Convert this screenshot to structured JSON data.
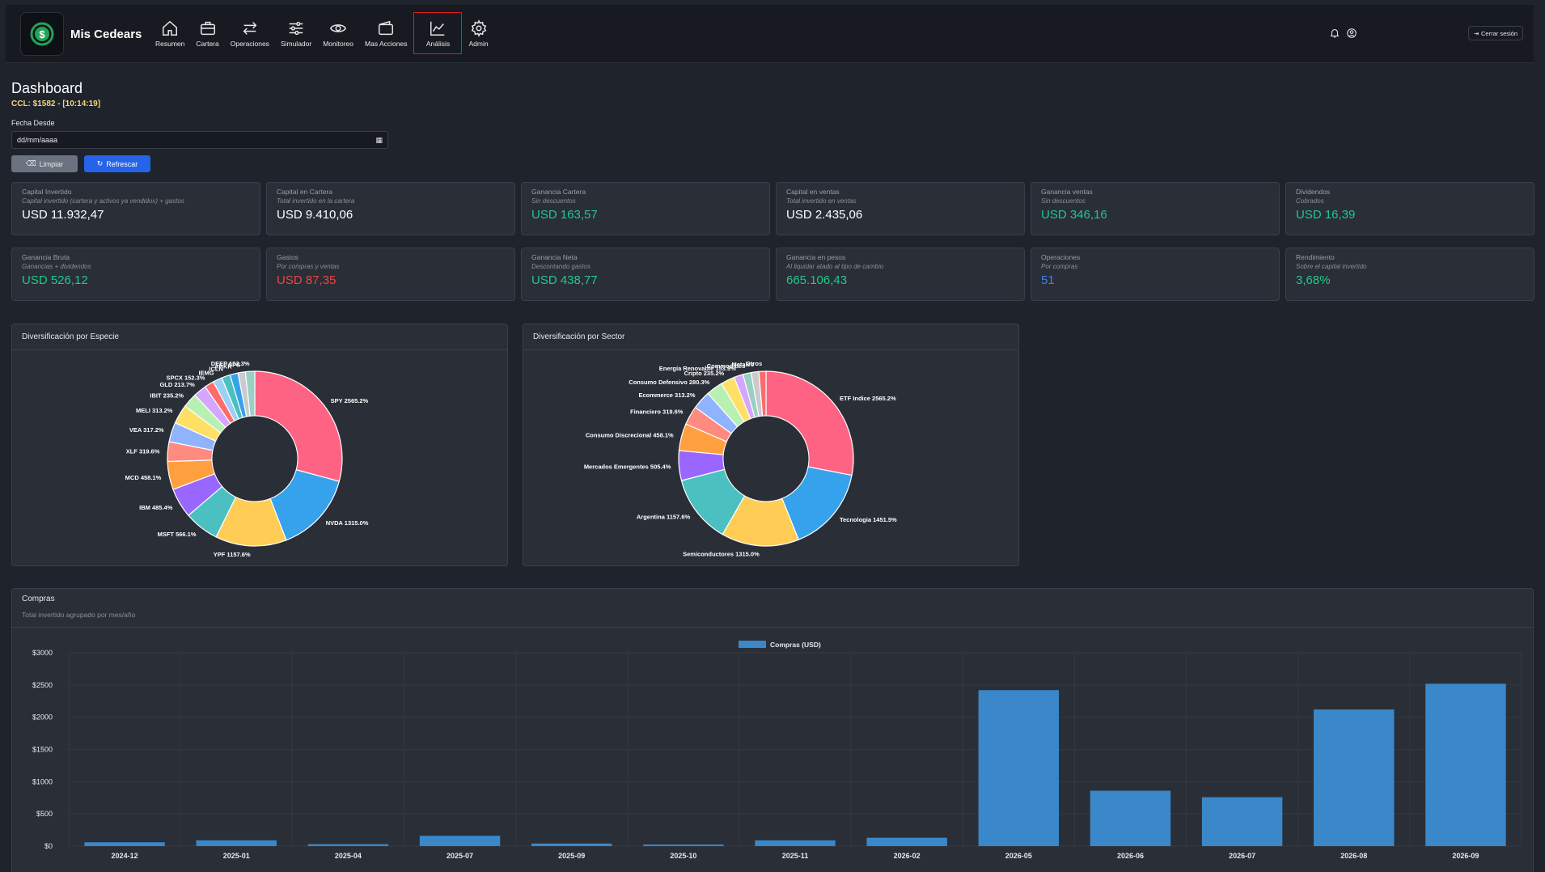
{
  "nav": {
    "brand": "Mis Cedears",
    "items": [
      {
        "label": "Resumen",
        "icon": "home-icon"
      },
      {
        "label": "Cartera",
        "icon": "briefcase-icon"
      },
      {
        "label": "Operaciones",
        "icon": "arrows-icon"
      },
      {
        "label": "Simulador",
        "icon": "sliders-icon"
      },
      {
        "label": "Monitoreo",
        "icon": "eye-icon"
      },
      {
        "label": "Mas Acciones",
        "icon": "wallet-icon"
      },
      {
        "label": "Análisis",
        "icon": "chart-line-icon",
        "active": true
      },
      {
        "label": "Admin",
        "icon": "gear-icon"
      }
    ],
    "logout": "Cerrar sesión"
  },
  "header": {
    "title": "Dashboard",
    "ccl": "CCL: $1582 - [10:14:19]",
    "date_label": "Fecha Desde",
    "date_placeholder": "dd/mm/aaaa",
    "clear_label": "Limpiar",
    "refresh_label": "Refrescar"
  },
  "cards": [
    {
      "title": "Capital Invertido",
      "sub": "Capital invertido (cartera y activos ya vendidos) + gastos",
      "value": "USD 11.932,47",
      "tone": "white"
    },
    {
      "title": "Capital en Cartera",
      "sub": "Total invertido en la cartera",
      "value": "USD 9.410,06",
      "tone": "white"
    },
    {
      "title": "Ganancia Cartera",
      "sub": "Sin descuentos",
      "value": "USD 163,57",
      "tone": "green"
    },
    {
      "title": "Capital en ventas",
      "sub": "Total invertido en ventas",
      "value": "USD 2.435,06",
      "tone": "white"
    },
    {
      "title": "Ganancia ventas",
      "sub": "Sin descuentos",
      "value": "USD 346,16",
      "tone": "green"
    },
    {
      "title": "Dividendos",
      "sub": "Cobrados",
      "value": "USD 16,39",
      "tone": "green"
    },
    {
      "title": "Ganancia Bruta",
      "sub": "Ganancias + dividendos",
      "value": "USD 526,12",
      "tone": "green"
    },
    {
      "title": "Gastos",
      "sub": "Por compras y ventas",
      "value": "USD 87,35",
      "tone": "red"
    },
    {
      "title": "Ganancia Neta",
      "sub": "Descontando gastos",
      "value": "USD 438,77",
      "tone": "green"
    },
    {
      "title": "Ganancia en pesos",
      "sub": "Al liquidar atado al tipo de cambio",
      "value": "665.106,43",
      "tone": "green"
    },
    {
      "title": "Operaciones",
      "sub": "Por compras",
      "value": "51",
      "tone": "blue"
    },
    {
      "title": "Rendimiento",
      "sub": "Sobre el capital invertido",
      "value": "3,68%",
      "tone": "green"
    }
  ],
  "panels": {
    "especie_title": "Diversificación por Especie",
    "sector_title": "Diversificación por Sector",
    "compras_title": "Compras",
    "compras_sub": "Total invertido agrupado por mes/año"
  },
  "chart_data": [
    {
      "type": "pie",
      "title": "Diversificación por Especie",
      "labels": [
        "SPY 2565.2%",
        "NVDA 1315.0%",
        "YPF 1157.6%",
        "MSFT 566.1%",
        "IBM 485.4%",
        "MCD 458.1%",
        "XLF 319.6%",
        "VEA 317.2%",
        "MELI 313.2%",
        "IBIT 235.2%",
        "GLD 213.7%",
        "SPCX 152.3%",
        "IEMG",
        "ICLN",
        "ARKK",
        "SPS",
        "DEEP 152.3%"
      ],
      "values": [
        2565.2,
        1315.0,
        1157.6,
        566.1,
        485.4,
        458.1,
        319.6,
        317.2,
        313.2,
        235.2,
        213.7,
        152.3,
        150,
        140,
        130,
        120,
        152.3
      ],
      "colors": [
        "#ff6384",
        "#36a2eb",
        "#ffcd56",
        "#4bc0c0",
        "#9966ff",
        "#ff9f40",
        "#ff8a80",
        "#8fb3ff",
        "#ffe066",
        "#b7f0b1",
        "#d6a5ff",
        "#ff6b6b",
        "#9ad0f5",
        "#4bc0c0",
        "#36a2eb",
        "#c9cbcf",
        "#9ad0c4"
      ]
    },
    {
      "type": "pie",
      "title": "Diversificación por Sector",
      "labels": [
        "ETF Indice 2565.2%",
        "Tecnologia 1451.5%",
        "Semiconductores 1315.0%",
        "Argentina 1157.6%",
        "Mercados Emergentes 505.4%",
        "Consumo Discrecional 458.1%",
        "Financiero 319.6%",
        "Ecommerce 313.2%",
        "Consumo Defensivo 280.3%",
        "Cripto 235.2%",
        "Energía Renovable 153.9%",
        "Commodities",
        "Metales",
        "Otros"
      ],
      "values": [
        2565.2,
        1451.5,
        1315.0,
        1157.6,
        505.4,
        458.1,
        319.6,
        313.2,
        280.3,
        235.2,
        153.9,
        140,
        130,
        120
      ],
      "colors": [
        "#ff6384",
        "#36a2eb",
        "#ffcd56",
        "#4bc0c0",
        "#9966ff",
        "#ff9f40",
        "#ff8a80",
        "#8fb3ff",
        "#b7f0b1",
        "#ffe066",
        "#d6a5ff",
        "#9ad0c4",
        "#c9cbcf",
        "#ff6b6b"
      ]
    },
    {
      "type": "bar",
      "title": "Compras",
      "legend": "Compras (USD)",
      "categories": [
        "2024-12",
        "2025-01",
        "2025-04",
        "2025-07",
        "2025-09",
        "2025-10",
        "2025-11",
        "2026-02",
        "2026-05",
        "2026-06",
        "2026-07",
        "2026-08",
        "2026-09"
      ],
      "values": [
        60,
        90,
        30,
        160,
        40,
        25,
        90,
        130,
        2420,
        860,
        760,
        2120,
        2520
      ],
      "ylim": [
        0,
        3000
      ],
      "yticks": [
        "$0",
        "$500",
        "$1000",
        "$1500",
        "$2000",
        "$2500",
        "$3000"
      ],
      "color": "#3a87c9"
    }
  ]
}
